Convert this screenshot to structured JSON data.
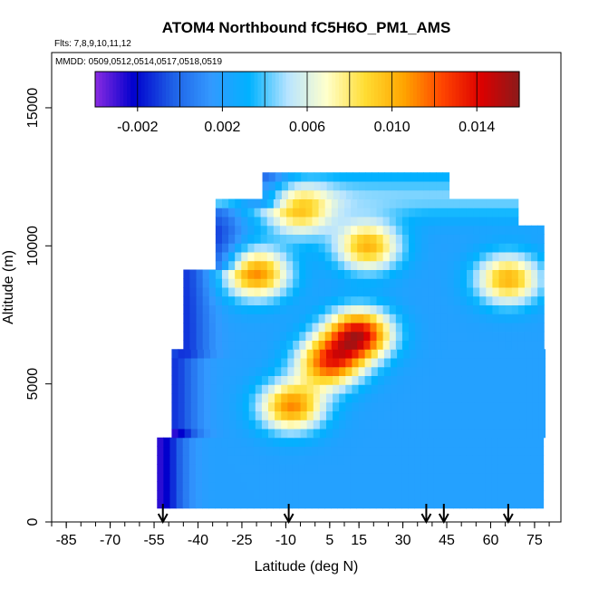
{
  "chart_data": {
    "type": "heatmap",
    "title": "ATOM4 Northbound fC5H6O_PM1_AMS",
    "flights_label": "Flts: 7,8,9,10,11,12",
    "mmdd_label": "MMDD: 0509,0512,0514,0517,0518,0519",
    "xlabel": "Latitude (deg N)",
    "ylabel": "Altitude (m)",
    "xlim": [
      -90,
      84
    ],
    "ylim": [
      0,
      17000
    ],
    "x_ticks": [
      -85,
      -70,
      -55,
      -40,
      -25,
      -10,
      5,
      15,
      30,
      45,
      60,
      75
    ],
    "x_tick_labels": [
      "-85",
      "-70",
      "-55",
      "-40",
      "-25",
      "-10",
      "5",
      "15",
      "30",
      "45",
      "60",
      "75"
    ],
    "y_ticks": [
      0,
      5000,
      10000,
      15000
    ],
    "y_tick_labels": [
      "0",
      "5000",
      "10000",
      "15000"
    ],
    "colorbar": {
      "range": [
        -0.004,
        0.016
      ],
      "tick_values": [
        -0.002,
        0.002,
        0.006,
        0.01,
        0.014
      ],
      "tick_labels": [
        "-0.002",
        "0.002",
        "0.006",
        "0.010",
        "0.014"
      ],
      "colors": [
        "#8a2be2",
        "#0000cd",
        "#1e5fe6",
        "#3399ff",
        "#00b2ff",
        "#b8e4ff",
        "#ffffcc",
        "#ffdd33",
        "#ffa500",
        "#ff4500",
        "#dd0000",
        "#8b1a1a"
      ]
    },
    "profile_arrows_lat": [
      -52,
      -9,
      38,
      44,
      66
    ],
    "field": {
      "description_units": "fC5H6O fraction by latitude (deg N) and altitude (m)",
      "lat_extent": [
        -55,
        78
      ],
      "alt_extent": [
        500,
        12500
      ],
      "hotspots": [
        {
          "lat": 15,
          "alt": 6800,
          "value": 0.014
        },
        {
          "lat": 5,
          "alt": 5800,
          "value": 0.012
        },
        {
          "lat": -8,
          "alt": 4200,
          "value": 0.011
        },
        {
          "lat": -20,
          "alt": 9000,
          "value": 0.011
        },
        {
          "lat": 18,
          "alt": 10000,
          "value": 0.01
        },
        {
          "lat": 66,
          "alt": 8800,
          "value": 0.01
        },
        {
          "lat": -5,
          "alt": 11200,
          "value": 0.008
        }
      ],
      "background_value": 0.002,
      "southern_edge_value": -0.002
    }
  }
}
